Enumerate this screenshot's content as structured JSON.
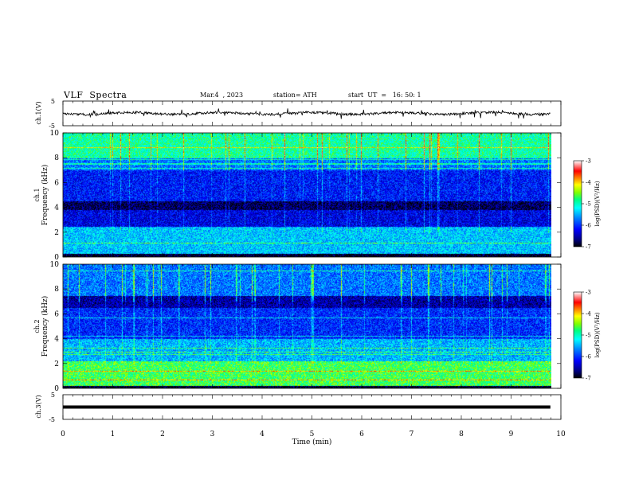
{
  "header": {
    "title": "VLF  Spectra",
    "date": "Mar.4  , 2023",
    "station": "station= ATH",
    "start_ut": "start  UT  =   16: 50: 1"
  },
  "chart_data": [
    {
      "type": "line",
      "panel": "ch.1 waveform",
      "ylabel": "ch.1(V)",
      "ytick_labels": [
        "5",
        "-5"
      ],
      "ylim": [
        -5,
        5
      ],
      "xlim": [
        0,
        10
      ],
      "baseline_level": 0,
      "trace_color": "#000000"
    },
    {
      "type": "heatmap",
      "panel": "ch.1 spectrogram",
      "ylabel_lines": [
        "ch.1",
        "Frequency (kHz)"
      ],
      "ytick_labels": [
        "0",
        "2",
        "4",
        "6",
        "8",
        "10"
      ],
      "ylim": [
        0,
        10
      ],
      "xlim": [
        0,
        10
      ],
      "data_extent_min": 9.8,
      "colorbar": {
        "label": "log(PSD)(V²/Hz)",
        "tick_labels": [
          "-3",
          "-4",
          "-5",
          "-6",
          "-7"
        ],
        "range": [
          -7,
          -3
        ],
        "colors": [
          "#000000",
          "#00007f",
          "#0000ff",
          "#0080ff",
          "#00ffff",
          "#00ff80",
          "#80ff00",
          "#ffff00",
          "#ff8000",
          "#ff0000",
          "#ffffff"
        ]
      }
    },
    {
      "type": "heatmap",
      "panel": "ch.2 spectrogram",
      "ylabel_lines": [
        "ch.2",
        "Frequency (kHz)"
      ],
      "ytick_labels": [
        "0",
        "2",
        "4",
        "6",
        "8",
        "10"
      ],
      "ylim": [
        0,
        10
      ],
      "xlim": [
        0,
        10
      ],
      "data_extent_min": 9.8,
      "colorbar": {
        "label": "log(PSD)(V²/Hz)",
        "tick_labels": [
          "-3",
          "-4",
          "-5",
          "-6",
          "-7"
        ],
        "range": [
          -7,
          -3
        ]
      }
    },
    {
      "type": "line",
      "panel": "ch.3 waveform",
      "ylabel": "ch.3(V)",
      "ytick_labels": [
        "5",
        "-5"
      ],
      "ylim": [
        -5,
        5
      ],
      "xlim": [
        0,
        10
      ],
      "baseline_level": 0,
      "trace_color": "#000000"
    }
  ],
  "x_axis": {
    "label": "Time  (min)",
    "tick_labels": [
      "0",
      "1",
      "2",
      "3",
      "4",
      "5",
      "6",
      "7",
      "8",
      "9",
      "10"
    ]
  }
}
